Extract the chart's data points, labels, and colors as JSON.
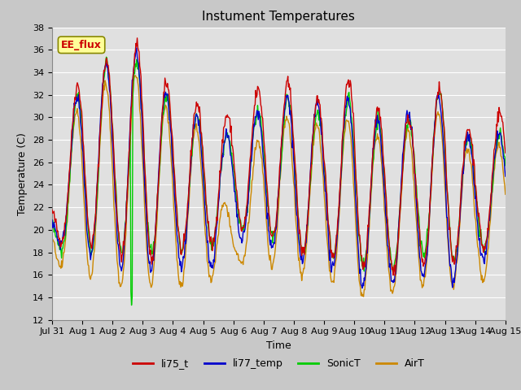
{
  "title": "Instument Temperatures",
  "xlabel": "Time",
  "ylabel": "Temperature (C)",
  "ylim": [
    12,
    38
  ],
  "yticks": [
    12,
    14,
    16,
    18,
    20,
    22,
    24,
    26,
    28,
    30,
    32,
    34,
    36,
    38
  ],
  "colors": {
    "li75_t": "#cc0000",
    "li77_temp": "#0000cc",
    "SonicT": "#00cc00",
    "AirT": "#cc8800"
  },
  "annotation_text": "EE_flux",
  "annotation_color": "#cc0000",
  "annotation_bg": "#ffff99",
  "fig_bg": "#c8c8c8",
  "plot_bg": "#e0e0e0",
  "title_fontsize": 11,
  "axis_fontsize": 9,
  "tick_fontsize": 8,
  "n_points": 720,
  "x_start": 0,
  "x_end": 15.0,
  "xtick_positions": [
    0,
    1,
    2,
    3,
    4,
    5,
    6,
    7,
    8,
    9,
    10,
    11,
    12,
    13,
    14,
    15
  ],
  "xtick_labels": [
    "Jul 31",
    "Aug 1",
    "Aug 2",
    "Aug 3",
    "Aug 4",
    "Aug 5",
    "Aug 6",
    "Aug 7",
    "Aug 8",
    "Aug 9",
    "Aug 10",
    "Aug 11",
    "Aug 12",
    "Aug 13",
    "Aug 14",
    "Aug 15"
  ]
}
